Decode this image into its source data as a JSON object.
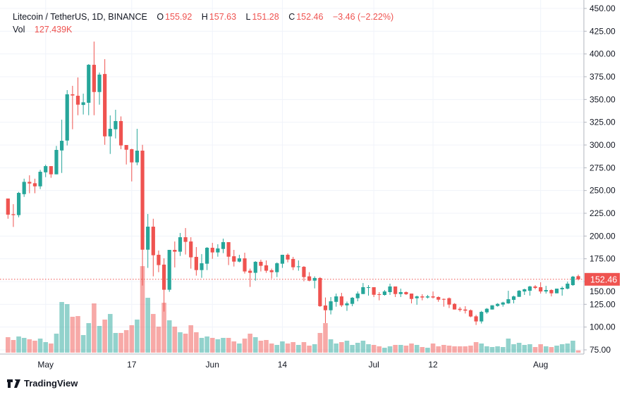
{
  "legend": {
    "symbol": "Litecoin / TetherUS, 1D, BINANCE",
    "o_label": "O",
    "o_value": "155.92",
    "h_label": "H",
    "h_value": "157.63",
    "l_label": "L",
    "l_value": "151.28",
    "c_label": "C",
    "c_value": "152.46",
    "change": "−3.46 (−2.22%)",
    "vol_label": "Vol",
    "vol_value": "127.439K"
  },
  "last_price_label": "152.46",
  "branding": "TradingView",
  "colors": {
    "up": "#26a69a",
    "down": "#ef5350",
    "up_vol": "#26a69a80",
    "down_vol": "#ef535080",
    "grid": "#f0f3fa"
  },
  "chart_data": {
    "type": "candlestick",
    "title": "Litecoin / TetherUS, 1D, BINANCE",
    "ylim": [
      75,
      450
    ],
    "yticks": [
      "450.00",
      "425.00",
      "400.00",
      "375.00",
      "350.00",
      "325.00",
      "300.00",
      "275.00",
      "250.00",
      "225.00",
      "200.00",
      "175.00",
      "150.00",
      "125.00",
      "100.00",
      "75.00"
    ],
    "ytick_values": [
      450,
      425,
      400,
      375,
      350,
      325,
      300,
      275,
      250,
      225,
      200,
      175,
      150,
      125,
      100,
      75
    ],
    "xticks": [
      {
        "label": "May",
        "index": 7
      },
      {
        "label": "17",
        "index": 23
      },
      {
        "label": "Jun",
        "index": 38
      },
      {
        "label": "14",
        "index": 51
      },
      {
        "label": "Jul",
        "index": 68
      },
      {
        "label": "12",
        "index": 79
      },
      {
        "label": "Aug",
        "index": 99
      }
    ],
    "last_price": 152.46,
    "ohlc": [
      [
        241.2,
        241.2,
        219,
        223.5
      ],
      [
        224,
        235,
        210,
        223
      ],
      [
        223,
        248.5,
        220.6,
        247.4
      ],
      [
        246,
        263,
        243,
        259.5
      ],
      [
        259.5,
        266.7,
        247,
        257.7
      ],
      [
        258,
        263,
        247,
        254.6
      ],
      [
        254.6,
        272.7,
        251.6,
        270.6
      ],
      [
        270,
        278.4,
        264.7,
        276.8
      ],
      [
        276.8,
        276.8,
        264,
        267.8
      ],
      [
        267.8,
        299,
        267.8,
        294.6
      ],
      [
        294,
        327.8,
        269.3,
        304.6
      ],
      [
        304.9,
        360.3,
        299.5,
        355.7
      ],
      [
        355.7,
        365,
        317.3,
        354.4
      ],
      [
        354.1,
        374.2,
        332.7,
        344.3
      ],
      [
        344,
        356.4,
        333.5,
        346.9
      ],
      [
        346.4,
        388.9,
        332.7,
        388.1
      ],
      [
        388.1,
        413.6,
        332.7,
        358.2
      ],
      [
        358.2,
        379.6,
        344.3,
        377.3
      ],
      [
        378,
        394.3,
        300.2,
        309.5
      ],
      [
        309.5,
        332.5,
        290.2,
        317.8
      ],
      [
        317.3,
        338.7,
        307.2,
        326.3
      ],
      [
        326.3,
        331.4,
        295.4,
        299.5
      ],
      [
        300,
        300,
        278.6,
        294.8
      ],
      [
        295.4,
        295.9,
        260,
        280.9
      ],
      [
        280.9,
        317.8,
        277.8,
        293.8
      ],
      [
        293.8,
        300.2,
        145.6,
        185
      ],
      [
        185,
        224.2,
        165,
        210.3
      ],
      [
        210.3,
        219,
        155.7,
        178.9
      ],
      [
        179.4,
        184.1,
        160.3,
        168.1
      ],
      [
        168.6,
        175.5,
        117,
        141
      ],
      [
        141,
        184.8,
        138.7,
        184.8
      ],
      [
        184.8,
        194,
        165.5,
        182.8
      ],
      [
        182.8,
        203.4,
        178.1,
        198.7
      ],
      [
        198.7,
        208.8,
        179.7,
        193.6
      ],
      [
        194,
        198.7,
        164.2,
        176.6
      ],
      [
        177.1,
        187.9,
        156.5,
        162.6
      ],
      [
        162.6,
        180.2,
        154.1,
        170.1
      ],
      [
        169.6,
        187.9,
        162.6,
        187.1
      ],
      [
        187.1,
        192.5,
        175,
        182
      ],
      [
        182,
        191,
        177.3,
        186.4
      ],
      [
        185.8,
        197.2,
        181.2,
        193.3
      ],
      [
        193.3,
        193.3,
        168.1,
        177.3
      ],
      [
        177.8,
        184.8,
        166.5,
        171.9
      ],
      [
        171.9,
        179.4,
        171.1,
        175.5
      ],
      [
        175.5,
        181.7,
        158.8,
        161.1
      ],
      [
        161.9,
        164.2,
        144.1,
        159.6
      ],
      [
        159.6,
        172.4,
        151,
        171.7
      ],
      [
        171.7,
        174,
        161.1,
        167.3
      ],
      [
        167.8,
        173.2,
        159.6,
        161.9
      ],
      [
        162.4,
        164.2,
        153.4,
        160.3
      ],
      [
        160.3,
        171.1,
        154.9,
        170.1
      ],
      [
        169.6,
        179.4,
        165,
        179.4
      ],
      [
        179.4,
        180.9,
        171.1,
        174.2
      ],
      [
        174.8,
        177.1,
        162.6,
        165.7
      ],
      [
        166.2,
        173.2,
        161.9,
        166.7
      ],
      [
        166.2,
        167,
        150.3,
        154.9
      ],
      [
        155.7,
        160.3,
        150.3,
        151
      ],
      [
        151,
        155.7,
        142.5,
        153.9
      ],
      [
        153.9,
        154.9,
        122.2,
        123
      ],
      [
        123.7,
        132.5,
        104.4,
        118.5
      ],
      [
        118.5,
        133,
        113.9,
        128.3
      ],
      [
        127.7,
        136.8,
        122.4,
        133.7
      ],
      [
        133.7,
        137.6,
        122.1,
        123.9
      ],
      [
        123.9,
        128,
        117.8,
        126
      ],
      [
        125.5,
        133,
        122.9,
        132.2
      ],
      [
        131.7,
        139.1,
        128.3,
        136.8
      ],
      [
        136.3,
        148.4,
        136.3,
        143.8
      ],
      [
        143,
        146.1,
        134.5,
        143.8
      ],
      [
        143.8,
        143.8,
        133,
        135.5
      ],
      [
        136.1,
        138.4,
        129.4,
        135.3
      ],
      [
        135.3,
        140.7,
        134.5,
        139.1
      ],
      [
        138.4,
        147.7,
        135.3,
        144.6
      ],
      [
        144.6,
        144.6,
        133,
        136.3
      ],
      [
        136.3,
        142.2,
        133,
        138.4
      ],
      [
        138.4,
        139.1,
        135.3,
        136.1
      ],
      [
        136.8,
        136.8,
        126,
        130.9
      ],
      [
        131.7,
        134.5,
        124.5,
        133.7
      ],
      [
        133.7,
        136.1,
        129.4,
        132.5
      ],
      [
        132.5,
        135.3,
        131.4,
        133.7
      ],
      [
        133.7,
        139.1,
        131.4,
        132.5
      ],
      [
        133,
        133.7,
        127.8,
        130.1
      ],
      [
        130.9,
        131.4,
        122.4,
        130.1
      ],
      [
        131.7,
        132.5,
        120.9,
        124.7
      ],
      [
        125.5,
        126.3,
        119.3,
        119.3
      ],
      [
        120.1,
        122.1,
        117,
        118.8
      ],
      [
        119.3,
        122.9,
        114.9,
        118
      ],
      [
        118.5,
        119.3,
        110.8,
        111.6
      ],
      [
        111.8,
        113.4,
        102.3,
        106.2
      ],
      [
        106.2,
        117.8,
        103.9,
        116.7
      ],
      [
        116.2,
        120.9,
        114.6,
        120.1
      ],
      [
        119.3,
        123.9,
        119.3,
        123.9
      ],
      [
        123.2,
        126.3,
        122.4,
        125.5
      ],
      [
        124.7,
        127.8,
        122.4,
        127
      ],
      [
        126,
        139.9,
        125.5,
        130.6
      ],
      [
        129.9,
        134.5,
        126,
        133.7
      ],
      [
        133.2,
        140.7,
        133.2,
        139.9
      ],
      [
        139.1,
        142.2,
        135.3,
        141.5
      ],
      [
        139.9,
        145.3,
        134.5,
        144.6
      ],
      [
        144.6,
        146.1,
        141.5,
        143
      ],
      [
        143.8,
        149.2,
        136.8,
        139.1
      ],
      [
        139.1,
        145.3,
        136.8,
        140.7
      ],
      [
        140.7,
        141.5,
        133.7,
        137.1
      ],
      [
        137.1,
        142.2,
        137.1,
        142.2
      ],
      [
        141.5,
        144.6,
        134.5,
        143
      ],
      [
        142.2,
        150,
        141.5,
        147.7
      ],
      [
        146.1,
        156.2,
        145.3,
        155.4
      ],
      [
        155.92,
        157.63,
        151.28,
        152.46
      ]
    ],
    "volume_k": [
      858,
      702,
      897,
      819,
      741,
      663,
      780,
      585,
      507,
      1053,
      2808,
      2691,
      1989,
      2028,
      975,
      1638,
      2730,
      1482,
      1833,
      2145,
      1092,
      1092,
      1248,
      1521,
      1833,
      4797,
      3042,
      2145,
      1443,
      2769,
      1794,
      1443,
      1131,
      1053,
      1521,
      1131,
      819,
      897,
      819,
      741,
      819,
      819,
      624,
      507,
      780,
      1053,
      858,
      663,
      702,
      507,
      429,
      624,
      507,
      585,
      429,
      585,
      390,
      468,
      1092,
      1638,
      741,
      507,
      585,
      663,
      429,
      546,
      663,
      468,
      429,
      351,
      273,
      351,
      429,
      429,
      390,
      507,
      429,
      312,
      273,
      507,
      351,
      429,
      390,
      351,
      351,
      351,
      390,
      585,
      507,
      351,
      312,
      351,
      312,
      780,
      468,
      546,
      429,
      468,
      312,
      468,
      351,
      312,
      390,
      468,
      507,
      663,
      127.439
    ]
  }
}
